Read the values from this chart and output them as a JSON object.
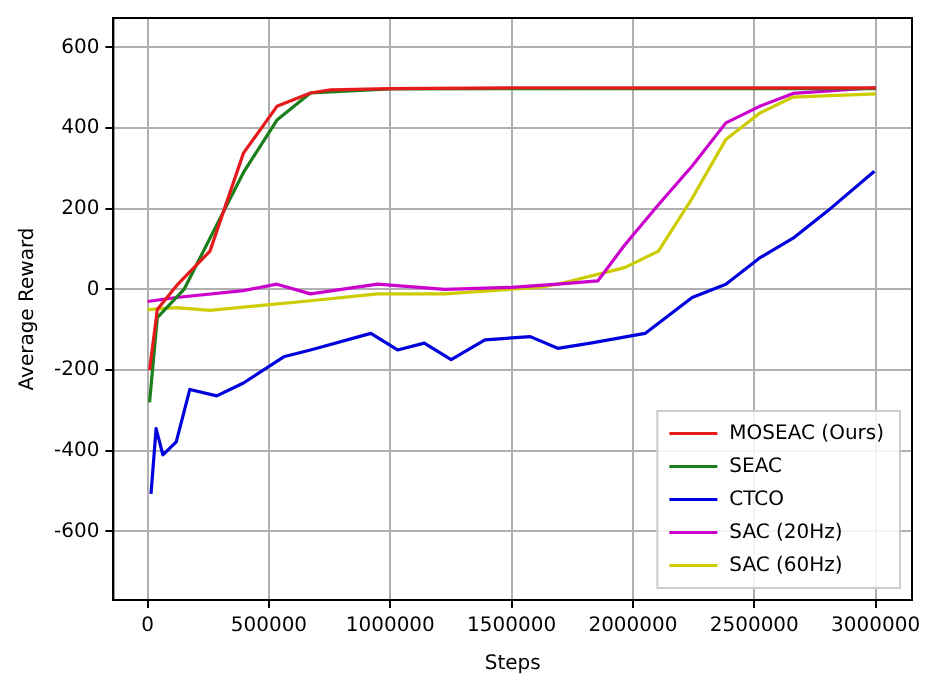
{
  "chart_data": {
    "type": "line",
    "xlabel": "Steps",
    "ylabel": "Average Reward",
    "xlim": [
      -141000,
      3150000
    ],
    "ylim": [
      -770,
      673
    ],
    "xticks": [
      0,
      500000,
      1000000,
      1500000,
      2000000,
      2500000,
      3000000
    ],
    "yticks": [
      -600,
      -400,
      -200,
      0,
      200,
      400,
      600
    ],
    "grid": true,
    "legend": "bottom right",
    "marker": "none",
    "line_style": "solid",
    "series": [
      {
        "name": "MOSEAC (Ours)",
        "color": "#e41a1c",
        "x": [
          8000,
          40000,
          120000,
          257000,
          395000,
          533000,
          671000,
          754000,
          1000000,
          1500000,
          2000000,
          2500000,
          3000000
        ],
        "values": [
          -200,
          -50,
          10,
          95,
          338,
          454,
          487,
          495,
          498,
          500,
          500,
          500,
          500
        ]
      },
      {
        "name": "SEAC",
        "color": "#1a7f1a",
        "x": [
          8000,
          40000,
          150000,
          257000,
          395000,
          533000,
          671000,
          1000000,
          1500000,
          2000000,
          2500000,
          3000000
        ],
        "values": [
          -280,
          -70,
          0,
          127,
          290,
          420,
          487,
          497,
          498,
          498,
          498,
          498
        ]
      },
      {
        "name": "CTCO",
        "color": "#0000dd",
        "x": [
          14000,
          35000,
          63000,
          118000,
          174000,
          285000,
          395000,
          561000,
          671000,
          920000,
          1030000,
          1140000,
          1251000,
          1390000,
          1577000,
          1690000,
          1825000,
          2050000,
          2244000,
          2383000,
          2522000,
          2660000,
          2799000,
          2995000
        ],
        "values": [
          -507,
          -345,
          -410,
          -378,
          -248,
          -264,
          -232,
          -167,
          -150,
          -109,
          -150,
          -133,
          -174,
          -125,
          -117,
          -146,
          -133,
          -109,
          -20,
          13,
          78,
          127,
          193,
          293
        ]
      },
      {
        "name": "SAC (20Hz)",
        "color": "#cc00cc",
        "x": [
          0,
          118000,
          395000,
          533000,
          671000,
          948000,
          1224000,
          1500000,
          1690000,
          1855000,
          1966000,
          2105000,
          2244000,
          2383000,
          2522000,
          2660000,
          3000000
        ],
        "values": [
          -30,
          -20,
          -3,
          13,
          -11,
          13,
          0,
          5,
          13,
          21,
          110,
          210,
          306,
          413,
          454,
          486,
          500
        ]
      },
      {
        "name": "SAC (60Hz)",
        "color": "#cccc00",
        "x": [
          0,
          118000,
          257000,
          671000,
          948000,
          1224000,
          1610000,
          1690000,
          1966000,
          2105000,
          2244000,
          2383000,
          2522000,
          2660000,
          3000000
        ],
        "values": [
          -50,
          -45,
          -52,
          -28,
          -11,
          -11,
          5,
          13,
          54,
          95,
          226,
          372,
          437,
          477,
          485
        ]
      }
    ]
  }
}
